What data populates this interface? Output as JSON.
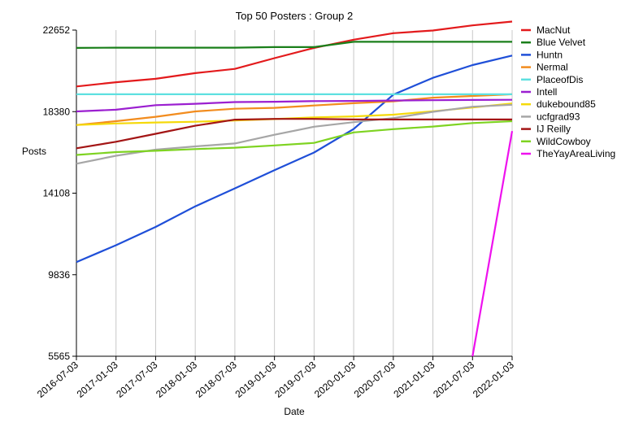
{
  "chart_data": {
    "type": "line",
    "title": "Top 50 Posters : Group 2",
    "xlabel": "Date",
    "ylabel": "Posts",
    "x": [
      "2016-07-03",
      "2017-01-03",
      "2017-07-03",
      "2018-01-03",
      "2018-07-03",
      "2019-01-03",
      "2019-07-03",
      "2020-01-03",
      "2020-07-03",
      "2021-01-03",
      "2021-07-03",
      "2022-01-03"
    ],
    "y_ticks": [
      5565,
      9836,
      14108,
      18380,
      22652
    ],
    "ylim": [
      5565,
      22652
    ],
    "grid": "vertical",
    "legend_position": "right",
    "series": [
      {
        "name": "MacNut",
        "color": "#e31a1c",
        "values": [
          19700,
          19920,
          20100,
          20400,
          20620,
          21180,
          21720,
          22150,
          22490,
          22630,
          22900,
          23100
        ]
      },
      {
        "name": "Blue Velvet",
        "color": "#1a7f1a",
        "values": [
          21720,
          21730,
          21730,
          21730,
          21730,
          21760,
          21760,
          22040,
          22040,
          22040,
          22040,
          22040
        ]
      },
      {
        "name": "Huntn",
        "color": "#1f4fd8",
        "values": [
          10500,
          11380,
          12340,
          13420,
          14360,
          15310,
          16240,
          17470,
          19270,
          20150,
          20820,
          21320
        ]
      },
      {
        "name": "Nermal",
        "color": "#f28c1e",
        "values": [
          17680,
          17880,
          18110,
          18390,
          18530,
          18580,
          18700,
          18820,
          18920,
          19110,
          19200,
          19290
        ]
      },
      {
        "name": "PlaceofDis",
        "color": "#5ee0e0",
        "values": [
          19290,
          19290,
          19290,
          19290,
          19290,
          19290,
          19290,
          19290,
          19290,
          19290,
          19290,
          19290
        ]
      },
      {
        "name": "Intell",
        "color": "#9b1fd0",
        "values": [
          18390,
          18480,
          18720,
          18790,
          18880,
          18900,
          18930,
          18940,
          18960,
          18980,
          18990,
          19000
        ]
      },
      {
        "name": "dukebound85",
        "color": "#f5d90a",
        "values": [
          17680,
          17760,
          17810,
          17850,
          17920,
          17990,
          18080,
          18130,
          18220,
          18400,
          18600,
          18810
        ]
      },
      {
        "name": "ucfgrad93",
        "color": "#a6a6a6",
        "values": [
          15650,
          16070,
          16390,
          16560,
          16710,
          17170,
          17590,
          17830,
          18040,
          18370,
          18640,
          18740
        ]
      },
      {
        "name": "IJ Reilly",
        "color": "#a31515",
        "values": [
          16460,
          16800,
          17220,
          17640,
          17960,
          18000,
          18000,
          17970,
          17970,
          17970,
          17970,
          17970
        ]
      },
      {
        "name": "WildCowboy",
        "color": "#7ed321",
        "values": [
          16110,
          16260,
          16330,
          16420,
          16490,
          16610,
          16740,
          17290,
          17460,
          17600,
          17780,
          17880
        ]
      },
      {
        "name": "TheYayAreaLiving",
        "color": "#ee11ee",
        "x": [
          "2021-07-03",
          "2022-01-03"
        ],
        "values": [
          5565,
          17360
        ]
      }
    ]
  }
}
